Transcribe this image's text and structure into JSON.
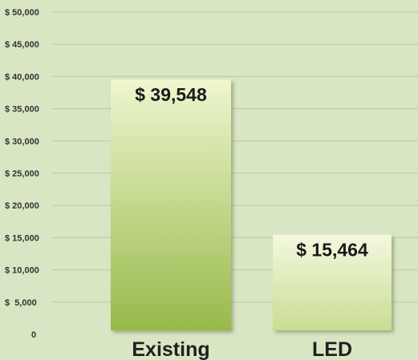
{
  "chart_data": {
    "type": "bar",
    "categories": [
      "Existing",
      "LED"
    ],
    "values": [
      39548,
      15464
    ],
    "data_labels": [
      "$ 39,548",
      "$ 15,464"
    ],
    "title": "",
    "xlabel": "",
    "ylabel": "",
    "ylim": [
      0,
      50000
    ],
    "y_ticks": [
      0,
      5000,
      10000,
      15000,
      20000,
      25000,
      30000,
      35000,
      40000,
      45000,
      50000
    ],
    "y_tick_labels": [
      "0",
      "$  5,000",
      "$ 10,000",
      "$ 15,000",
      "$ 20,000",
      "$ 25,000",
      "$ 30,000",
      "$ 35,000",
      "$ 40,000",
      "$ 45,000",
      "$ 50,000"
    ],
    "grid": true,
    "legend": "none"
  },
  "colors": {
    "background": "#d9e6c4",
    "grid": "#b9c9a2",
    "bar_existing_top": "#eef6cf",
    "bar_existing_bottom": "#98b94a",
    "bar_led_top": "#f3f8df",
    "bar_led_bottom": "#c9dd93"
  }
}
